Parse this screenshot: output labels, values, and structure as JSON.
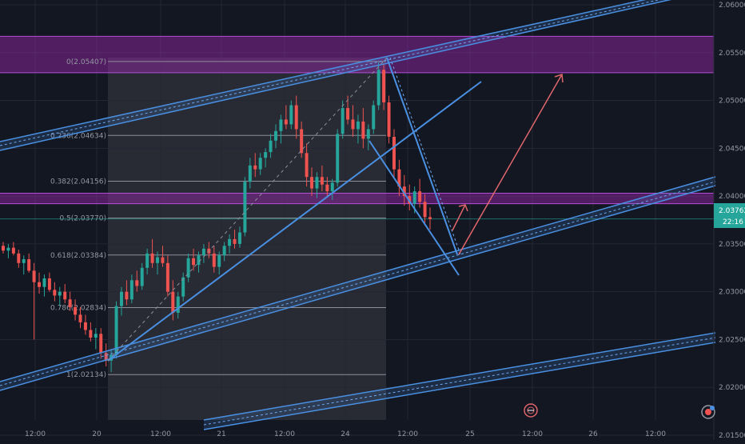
{
  "colors": {
    "background": "#131722",
    "grid": "#242733",
    "up": "#26a69a",
    "down": "#ef5350",
    "channel": "#4a90e2",
    "zone": "#9c27b0",
    "fib_line": "#8c8f99",
    "fib_region": "#3a3b44",
    "arrow": "#e0656b",
    "axis_text": "#9598a1",
    "last_price_bg": "#26a69a"
  },
  "chart_data": {
    "type": "candlestick",
    "symbol_feature": "price chart with fibonacci retracement, channels and supply/demand zones",
    "y_axis": {
      "ylim": [
        2.0145,
        2.0605
      ],
      "ticks": [
        "2.06000",
        "2.05500",
        "2.05000",
        "2.04500",
        "2.04000",
        "2.03500",
        "2.03000",
        "2.02500",
        "2.02000",
        "2.01500"
      ]
    },
    "x_axis": {
      "ticks": [
        "12:00",
        "20",
        "12:00",
        "21",
        "12:00",
        "24",
        "12:00",
        "25",
        "12:00",
        "26",
        "12:00"
      ]
    },
    "last_price": {
      "value": "2.03762",
      "countdown": "22:16"
    },
    "fibonacci": [
      {
        "label": "0(2.05407)",
        "value": 2.05407
      },
      {
        "label": "0.236(2.04634)",
        "value": 2.04634
      },
      {
        "label": "0.382(2.04156)",
        "value": 2.04156
      },
      {
        "label": "0.5(2.03770)",
        "value": 2.0377
      },
      {
        "label": "0.618(2.03384)",
        "value": 2.03384
      },
      {
        "label": "0.786(2.02834)",
        "value": 2.02834
      },
      {
        "label": "1(2.02134)",
        "value": 2.02134
      }
    ],
    "zones": [
      {
        "name": "upper-zone",
        "from": 2.0529,
        "to": 2.0567
      },
      {
        "name": "middle-zone",
        "from": 2.0392,
        "to": 2.0403
      }
    ],
    "candles": [
      [
        2.0348,
        2.0352,
        2.034,
        2.0343
      ],
      [
        2.0343,
        2.035,
        2.0335,
        2.0346
      ],
      [
        2.0346,
        2.0352,
        2.0338,
        2.034
      ],
      [
        2.034,
        2.0344,
        2.0325,
        2.033
      ],
      [
        2.033,
        2.0338,
        2.0318,
        2.0334
      ],
      [
        2.0334,
        2.034,
        2.032,
        2.0322
      ],
      [
        2.0322,
        2.033,
        2.025,
        2.031
      ],
      [
        2.031,
        2.032,
        2.0298,
        2.0305
      ],
      [
        2.0305,
        2.0318,
        2.0295,
        2.0314
      ],
      [
        2.0314,
        2.032,
        2.03,
        2.0302
      ],
      [
        2.0302,
        2.031,
        2.029,
        2.0296
      ],
      [
        2.0296,
        2.0305,
        2.0285,
        2.03
      ],
      [
        2.03,
        2.0308,
        2.0288,
        2.0292
      ],
      [
        2.0292,
        2.03,
        2.028,
        2.0284
      ],
      [
        2.0284,
        2.0292,
        2.027,
        2.0276
      ],
      [
        2.0276,
        2.0284,
        2.0262,
        2.0268
      ],
      [
        2.0268,
        2.0276,
        2.0255,
        2.026
      ],
      [
        2.026,
        2.0268,
        2.0248,
        2.0252
      ],
      [
        2.0252,
        2.0262,
        2.024,
        2.0256
      ],
      [
        2.0256,
        2.0262,
        2.023,
        2.0236
      ],
      [
        2.0236,
        2.0246,
        2.0222,
        2.0228
      ],
      [
        2.0228,
        2.024,
        2.0216,
        2.0234
      ],
      [
        2.0234,
        2.029,
        2.023,
        2.0285
      ],
      [
        2.0285,
        2.0305,
        2.0275,
        2.03
      ],
      [
        2.03,
        2.0312,
        2.0286,
        2.0292
      ],
      [
        2.0292,
        2.0318,
        2.0288,
        2.0312
      ],
      [
        2.0312,
        2.0322,
        2.03,
        2.0306
      ],
      [
        2.0306,
        2.033,
        2.0302,
        2.0325
      ],
      [
        2.0325,
        2.0345,
        2.0318,
        2.034
      ],
      [
        2.034,
        2.0355,
        2.0325,
        2.033
      ],
      [
        2.033,
        2.0342,
        2.0318,
        2.0336
      ],
      [
        2.0336,
        2.0348,
        2.0326,
        2.033
      ],
      [
        2.033,
        2.0338,
        2.0295,
        2.03
      ],
      [
        2.03,
        2.0312,
        2.027,
        2.0278
      ],
      [
        2.0278,
        2.03,
        2.0272,
        2.0295
      ],
      [
        2.0295,
        2.032,
        2.029,
        2.0315
      ],
      [
        2.0315,
        2.034,
        2.031,
        2.0335
      ],
      [
        2.0335,
        2.0345,
        2.0322,
        2.0328
      ],
      [
        2.0328,
        2.0342,
        2.032,
        2.0338
      ],
      [
        2.0338,
        2.035,
        2.033,
        2.0345
      ],
      [
        2.0345,
        2.0352,
        2.0335,
        2.034
      ],
      [
        2.034,
        2.0348,
        2.032,
        2.0326
      ],
      [
        2.0326,
        2.0342,
        2.0318,
        2.0338
      ],
      [
        2.0338,
        2.0352,
        2.0332,
        2.0348
      ],
      [
        2.0348,
        2.036,
        2.034,
        2.0355
      ],
      [
        2.0355,
        2.0365,
        2.0345,
        2.035
      ],
      [
        2.035,
        2.0368,
        2.0346,
        2.0362
      ],
      [
        2.0362,
        2.042,
        2.0358,
        2.0415
      ],
      [
        2.0415,
        2.044,
        2.0408,
        2.0432
      ],
      [
        2.0432,
        2.0445,
        2.042,
        2.0428
      ],
      [
        2.0428,
        2.0445,
        2.0422,
        2.044
      ],
      [
        2.044,
        2.045,
        2.043,
        2.0446
      ],
      [
        2.0446,
        2.0465,
        2.044,
        2.0458
      ],
      [
        2.0458,
        2.0475,
        2.045,
        2.0468
      ],
      [
        2.0468,
        2.0485,
        2.0455,
        2.048
      ],
      [
        2.048,
        2.0495,
        2.047,
        2.0475
      ],
      [
        2.0475,
        2.05,
        2.047,
        2.0495
      ],
      [
        2.0495,
        2.0505,
        2.046,
        2.047
      ],
      [
        2.047,
        2.0478,
        2.044,
        2.0445
      ],
      [
        2.0445,
        2.0455,
        2.041,
        2.042
      ],
      [
        2.042,
        2.043,
        2.04,
        2.0408
      ],
      [
        2.0408,
        2.0425,
        2.0398,
        2.042
      ],
      [
        2.042,
        2.0432,
        2.0405,
        2.0412
      ],
      [
        2.0412,
        2.042,
        2.04,
        2.0405
      ],
      [
        2.0405,
        2.0418,
        2.0396,
        2.0414
      ],
      [
        2.0414,
        2.047,
        2.041,
        2.0465
      ],
      [
        2.0465,
        2.05,
        2.046,
        2.0492
      ],
      [
        2.0492,
        2.0505,
        2.0475,
        2.048
      ],
      [
        2.048,
        2.0495,
        2.0462,
        2.047
      ],
      [
        2.047,
        2.0485,
        2.0455,
        2.0478
      ],
      [
        2.0478,
        2.0492,
        2.045,
        2.046
      ],
      [
        2.046,
        2.0475,
        2.0448,
        2.047
      ],
      [
        2.047,
        2.05,
        2.0465,
        2.0495
      ],
      [
        2.0495,
        2.054,
        2.049,
        2.0532
      ],
      [
        2.0532,
        2.0538,
        2.049,
        2.0498
      ],
      [
        2.0498,
        2.0505,
        2.0455,
        2.0462
      ],
      [
        2.0462,
        2.047,
        2.042,
        2.0428
      ],
      [
        2.0428,
        2.0438,
        2.04,
        2.041
      ],
      [
        2.041,
        2.0422,
        2.039,
        2.04
      ],
      [
        2.04,
        2.0412,
        2.0385,
        2.0392
      ],
      [
        2.0392,
        2.041,
        2.0382,
        2.0405
      ],
      [
        2.0405,
        2.0418,
        2.0388,
        2.0394
      ],
      [
        2.0394,
        2.0402,
        2.0372,
        2.0378
      ],
      [
        2.0378,
        2.0388,
        2.0365,
        2.0376
      ]
    ]
  }
}
